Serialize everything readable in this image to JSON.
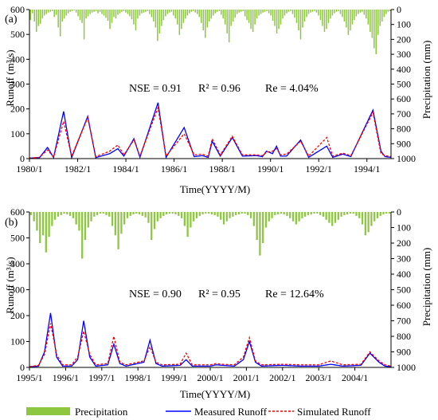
{
  "chart_data": [
    {
      "type": "bar+line",
      "panel_label": "(a)",
      "xlabel": "Time(YYYY/M)",
      "ylabel_left": "Runoff (m³/s)",
      "ylabel_right": "Precipitation (mm)",
      "ylim_left": [
        0,
        600
      ],
      "ylim_right_inverted": [
        0,
        1000
      ],
      "yticks_left": [
        "0",
        "100",
        "200",
        "300",
        "400",
        "500",
        "600"
      ],
      "yticks_right": [
        "0",
        "100",
        "200",
        "300",
        "400",
        "500",
        "600",
        "700",
        "800",
        "900",
        "1000"
      ],
      "x_tick_labels": [
        "1980/1",
        "1982/1",
        "1984/1",
        "1986/1",
        "1988/1",
        "1990/1",
        "1992/1",
        "1994/1"
      ],
      "x_range_months": [
        0,
        180
      ],
      "stats": {
        "nse": "NSE = 0.91",
        "r2": "R² = 0.96",
        "re": "Re = 4.04%"
      },
      "measured_peaks": [
        [
          0,
          2
        ],
        [
          5,
          4
        ],
        [
          9,
          45
        ],
        [
          12,
          4
        ],
        [
          17,
          190
        ],
        [
          21,
          4
        ],
        [
          29,
          170
        ],
        [
          33,
          4
        ],
        [
          40,
          20
        ],
        [
          44,
          40
        ],
        [
          47,
          10
        ],
        [
          52,
          80
        ],
        [
          55,
          5
        ],
        [
          64,
          225
        ],
        [
          68,
          5
        ],
        [
          77,
          125
        ],
        [
          82,
          8
        ],
        [
          86,
          12
        ],
        [
          89,
          5
        ],
        [
          91,
          70
        ],
        [
          95,
          10
        ],
        [
          101,
          85
        ],
        [
          106,
          10
        ],
        [
          113,
          12
        ],
        [
          116,
          8
        ],
        [
          118,
          30
        ],
        [
          121,
          20
        ],
        [
          123,
          50
        ],
        [
          125,
          10
        ],
        [
          128,
          10
        ],
        [
          135,
          75
        ],
        [
          139,
          5
        ],
        [
          148,
          50
        ],
        [
          151,
          5
        ],
        [
          156,
          18
        ],
        [
          160,
          8
        ],
        [
          171,
          195
        ],
        [
          175,
          30
        ],
        [
          177,
          8
        ],
        [
          180,
          5
        ]
      ],
      "simulated_peaks": [
        [
          0,
          2
        ],
        [
          5,
          5
        ],
        [
          9,
          35
        ],
        [
          12,
          6
        ],
        [
          17,
          150
        ],
        [
          21,
          10
        ],
        [
          29,
          165
        ],
        [
          33,
          8
        ],
        [
          40,
          30
        ],
        [
          44,
          55
        ],
        [
          47,
          15
        ],
        [
          52,
          75
        ],
        [
          55,
          10
        ],
        [
          64,
          205
        ],
        [
          68,
          10
        ],
        [
          77,
          100
        ],
        [
          82,
          15
        ],
        [
          86,
          18
        ],
        [
          89,
          10
        ],
        [
          91,
          80
        ],
        [
          95,
          15
        ],
        [
          101,
          90
        ],
        [
          106,
          15
        ],
        [
          113,
          15
        ],
        [
          116,
          12
        ],
        [
          118,
          25
        ],
        [
          121,
          30
        ],
        [
          123,
          40
        ],
        [
          125,
          15
        ],
        [
          128,
          18
        ],
        [
          135,
          70
        ],
        [
          139,
          10
        ],
        [
          148,
          85
        ],
        [
          151,
          10
        ],
        [
          156,
          22
        ],
        [
          160,
          12
        ],
        [
          171,
          185
        ],
        [
          175,
          20
        ],
        [
          177,
          12
        ],
        [
          180,
          8
        ]
      ],
      "precipitation_mm": [
        70,
        25,
        80,
        150,
        110,
        95,
        60,
        40,
        30,
        20,
        15,
        10,
        50,
        35,
        120,
        180,
        80,
        60,
        40,
        25,
        15,
        10,
        5,
        20,
        45,
        70,
        90,
        200,
        60,
        45,
        30,
        20,
        15,
        10,
        25,
        15,
        30,
        40,
        55,
        75,
        130,
        90,
        50,
        60,
        35,
        25,
        15,
        10,
        20,
        30,
        45,
        65,
        100,
        140,
        60,
        40,
        25,
        20,
        15,
        10,
        30,
        50,
        80,
        120,
        210,
        160,
        110,
        70,
        45,
        30,
        20,
        15,
        40,
        60,
        100,
        170,
        130,
        90,
        60,
        40,
        25,
        15,
        10,
        20,
        30,
        50,
        90,
        140,
        190,
        120,
        80,
        60,
        40,
        25,
        15,
        10,
        35,
        60,
        100,
        160,
        220,
        110,
        80,
        55,
        30,
        20,
        15,
        10,
        45,
        70,
        90,
        130,
        150,
        100,
        60,
        40,
        30,
        20,
        15,
        10,
        25,
        40,
        75,
        110,
        160,
        130,
        100,
        60,
        40,
        25,
        15,
        10,
        30,
        55,
        90,
        140,
        200,
        120,
        80,
        50,
        30,
        20,
        15,
        10,
        20,
        40,
        70,
        110,
        150,
        130,
        90,
        60,
        40,
        25,
        15,
        10,
        30,
        50,
        80,
        120,
        170,
        140,
        100,
        70,
        45,
        30,
        20,
        15,
        35,
        60,
        100,
        150,
        190,
        260,
        300,
        170,
        110,
        80,
        50,
        30,
        15,
        10
      ]
    },
    {
      "type": "bar+line",
      "panel_label": "(b)",
      "xlabel": "Time(YYYY/M)",
      "ylabel_left": "Runoff (m³/s)",
      "ylabel_right": "Precipitation (mm)",
      "ylim_left": [
        0,
        600
      ],
      "ylim_right_inverted": [
        0,
        1000
      ],
      "yticks_left": [
        "0",
        "100",
        "200",
        "300",
        "400",
        "500",
        "600"
      ],
      "yticks_right": [
        "0",
        "100",
        "200",
        "300",
        "400",
        "500",
        "600",
        "700",
        "800",
        "900",
        "1000"
      ],
      "x_tick_labels": [
        "1995/1",
        "1996/1",
        "1997/1",
        "1998/1",
        "1999/1",
        "2000/1",
        "2001/1",
        "2002/1",
        "2003/1",
        "2004/1"
      ],
      "x_range_months": [
        0,
        120
      ],
      "stats": {
        "nse": "NSE = 0.90",
        "r2": "R² = 0.95",
        "re": "Re = 12.64%"
      },
      "measured_peaks": [
        [
          0,
          2
        ],
        [
          3,
          5
        ],
        [
          5,
          60
        ],
        [
          7,
          210
        ],
        [
          9,
          40
        ],
        [
          11,
          5
        ],
        [
          14,
          5
        ],
        [
          16,
          30
        ],
        [
          18,
          180
        ],
        [
          20,
          40
        ],
        [
          22,
          5
        ],
        [
          26,
          10
        ],
        [
          28,
          90
        ],
        [
          30,
          15
        ],
        [
          32,
          5
        ],
        [
          38,
          20
        ],
        [
          40,
          105
        ],
        [
          42,
          15
        ],
        [
          44,
          5
        ],
        [
          50,
          8
        ],
        [
          52,
          30
        ],
        [
          54,
          5
        ],
        [
          60,
          5
        ],
        [
          62,
          10
        ],
        [
          64,
          8
        ],
        [
          68,
          5
        ],
        [
          71,
          30
        ],
        [
          73,
          100
        ],
        [
          75,
          20
        ],
        [
          77,
          5
        ],
        [
          84,
          8
        ],
        [
          90,
          5
        ],
        [
          96,
          5
        ],
        [
          100,
          12
        ],
        [
          104,
          5
        ],
        [
          110,
          8
        ],
        [
          113,
          55
        ],
        [
          116,
          20
        ],
        [
          118,
          5
        ],
        [
          120,
          3
        ]
      ],
      "simulated_peaks": [
        [
          0,
          3
        ],
        [
          3,
          8
        ],
        [
          5,
          50
        ],
        [
          7,
          170
        ],
        [
          9,
          50
        ],
        [
          11,
          10
        ],
        [
          14,
          10
        ],
        [
          16,
          40
        ],
        [
          18,
          140
        ],
        [
          20,
          50
        ],
        [
          22,
          10
        ],
        [
          26,
          15
        ],
        [
          28,
          120
        ],
        [
          30,
          20
        ],
        [
          32,
          10
        ],
        [
          38,
          25
        ],
        [
          40,
          80
        ],
        [
          42,
          20
        ],
        [
          44,
          10
        ],
        [
          50,
          12
        ],
        [
          52,
          55
        ],
        [
          54,
          10
        ],
        [
          60,
          10
        ],
        [
          62,
          15
        ],
        [
          64,
          12
        ],
        [
          68,
          10
        ],
        [
          71,
          40
        ],
        [
          73,
          115
        ],
        [
          75,
          25
        ],
        [
          77,
          10
        ],
        [
          84,
          12
        ],
        [
          90,
          10
        ],
        [
          96,
          10
        ],
        [
          100,
          25
        ],
        [
          104,
          10
        ],
        [
          110,
          12
        ],
        [
          113,
          60
        ],
        [
          116,
          25
        ],
        [
          118,
          10
        ],
        [
          120,
          5
        ]
      ],
      "precipitation_mm": [
        20,
        60,
        120,
        200,
        150,
        260,
        160,
        90,
        50,
        30,
        20,
        10,
        15,
        25,
        40,
        80,
        120,
        300,
        180,
        100,
        60,
        30,
        20,
        10,
        10,
        20,
        30,
        90,
        150,
        240,
        140,
        80,
        40,
        25,
        15,
        10,
        15,
        25,
        35,
        70,
        180,
        110,
        60,
        40,
        25,
        15,
        10,
        10,
        15,
        25,
        40,
        90,
        160,
        100,
        60,
        40,
        25,
        15,
        10,
        10,
        15,
        20,
        30,
        50,
        80,
        60,
        40,
        30,
        20,
        15,
        10,
        10,
        20,
        40,
        90,
        180,
        280,
        200,
        100,
        60,
        40,
        20,
        15,
        10,
        15,
        25,
        40,
        60,
        80,
        60,
        40,
        30,
        20,
        15,
        10,
        10,
        20,
        30,
        50,
        70,
        90,
        70,
        50,
        30,
        20,
        15,
        10,
        10,
        25,
        40,
        80,
        150,
        130,
        90,
        60,
        40,
        25,
        15,
        10,
        10
      ]
    }
  ],
  "legend": {
    "precipitation": "Precipitation",
    "measured": "Measured Runoff",
    "simulated": "Simulated Runoff"
  },
  "colors": {
    "precip": "#8dc63f",
    "measured": "#0000ff",
    "simulated": "#ff0000",
    "axis": "#000000"
  }
}
